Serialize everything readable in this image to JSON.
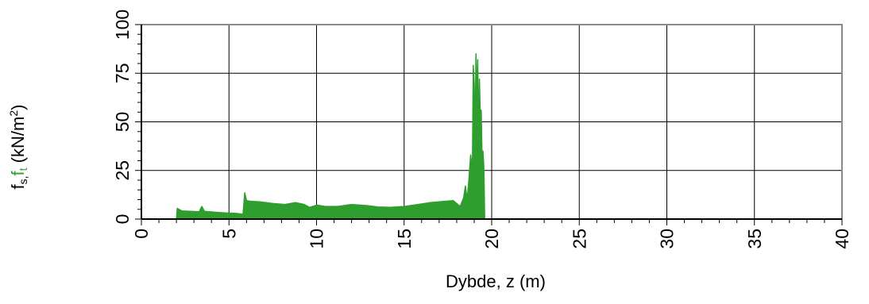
{
  "chart_data": {
    "type": "area",
    "xlabel": "Dybde, z (m)",
    "ylabel": {
      "parts": [
        {
          "text": "f",
          "color": "#000000"
        },
        {
          "sub": "s,",
          "color": "#000000"
        },
        {
          "text": "f",
          "color": "#2e9e2e"
        },
        {
          "sub": "t",
          "color": "#2e9e2e"
        },
        {
          "text": "(kN/m",
          "color": "#000000"
        },
        {
          "sup": "2",
          "color": "#000000"
        },
        {
          "text": ")",
          "color": "#000000"
        }
      ]
    },
    "xlim": [
      0,
      40
    ],
    "ylim": [
      0,
      100
    ],
    "x_ticks": [
      "0",
      "5",
      "10",
      "15",
      "20",
      "25",
      "30",
      "35",
      "40"
    ],
    "y_ticks": [
      "0",
      "25",
      "50",
      "75",
      "100"
    ],
    "grid": true,
    "series": [
      {
        "color": "#2e9e2e",
        "x": [
          2.0,
          2.05,
          2.3,
          2.8,
          3.3,
          3.45,
          3.6,
          4.2,
          4.8,
          5.3,
          5.8,
          5.9,
          6.0,
          6.2,
          6.8,
          7.5,
          8.2,
          8.8,
          9.3,
          9.6,
          10.0,
          10.5,
          11.2,
          12.0,
          12.8,
          13.5,
          14.2,
          15.0,
          15.8,
          16.5,
          17.2,
          17.8,
          18.2,
          18.4,
          18.5,
          18.6,
          18.7,
          18.8,
          18.9,
          18.95,
          19.0,
          19.05,
          19.1,
          19.15,
          19.2,
          19.25,
          19.3,
          19.35,
          19.4,
          19.45,
          19.5,
          19.55,
          19.6
        ],
        "y": [
          0,
          5.5,
          4.2,
          4.0,
          3.8,
          6.5,
          4.0,
          3.5,
          3.2,
          3.0,
          2.5,
          13.5,
          9.5,
          9.2,
          8.8,
          8.0,
          7.5,
          8.5,
          7.5,
          6.0,
          7.2,
          6.5,
          6.5,
          7.5,
          7.0,
          6.2,
          6.0,
          6.5,
          7.5,
          8.5,
          9.0,
          9.5,
          6.5,
          11.0,
          17.0,
          10.0,
          20.0,
          33.0,
          25.0,
          79.0,
          70.0,
          40.0,
          85.0,
          60.0,
          82.0,
          45.0,
          72.0,
          50.0,
          56.0,
          30.0,
          35.0,
          27.0,
          0
        ]
      }
    ]
  }
}
